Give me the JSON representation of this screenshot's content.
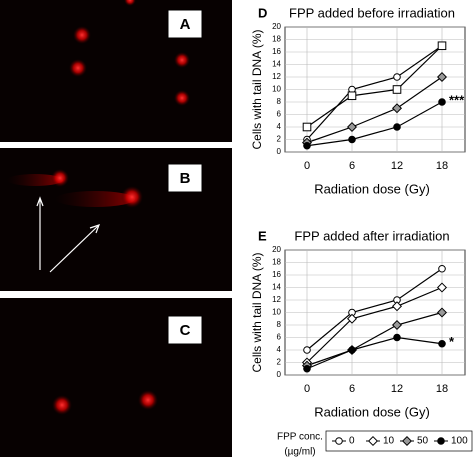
{
  "images": [
    {
      "label": "A"
    },
    {
      "label": "B"
    },
    {
      "label": "C"
    }
  ],
  "chart_data": [
    {
      "type": "line",
      "panel": "D",
      "title": "FPP added before irradiation",
      "x_label": "Radiation dose (Gy)",
      "y_label": "Cells with tail DNA (%)",
      "categories": [
        "0",
        "6",
        "12",
        "18"
      ],
      "ylim": [
        0,
        20
      ],
      "yticks": [
        0,
        2,
        4,
        6,
        8,
        10,
        12,
        14,
        16,
        18,
        20
      ],
      "series": [
        {
          "color": "#000000",
          "fill": "#ffffff",
          "marker": "circle",
          "values": [
            2,
            10,
            12,
            17
          ]
        },
        {
          "color": "#000000",
          "fill": "#ffffff",
          "marker": "square",
          "values": [
            4,
            9,
            10,
            17
          ]
        },
        {
          "color": "#000000",
          "fill": "#999999",
          "marker": "diamond",
          "values": [
            1.5,
            4,
            7,
            12
          ]
        },
        {
          "color": "#000000",
          "fill": "#000000",
          "marker": "circle",
          "values": [
            1,
            2,
            4,
            8
          ]
        }
      ],
      "annotations": [
        {
          "text": "***",
          "series": 3,
          "index": 3
        }
      ]
    },
    {
      "type": "line",
      "panel": "E",
      "title": "FPP added after irradiation",
      "x_label": "Radiation dose (Gy)",
      "y_label": "Cells with tail DNA (%)",
      "categories": [
        "0",
        "6",
        "12",
        "18"
      ],
      "ylim": [
        0,
        20
      ],
      "yticks": [
        0,
        2,
        4,
        6,
        8,
        10,
        12,
        14,
        16,
        18,
        20
      ],
      "legend_title": [
        "FPP conc.",
        "(µg/ml)"
      ],
      "series": [
        {
          "name": "0",
          "color": "#000000",
          "fill": "#ffffff",
          "marker": "circle",
          "values": [
            4,
            10,
            12,
            17
          ]
        },
        {
          "name": "10",
          "color": "#000000",
          "fill": "#ffffff",
          "marker": "diamond",
          "values": [
            2,
            9,
            11,
            14
          ]
        },
        {
          "name": "50",
          "color": "#000000",
          "fill": "#999999",
          "marker": "diamond",
          "values": [
            1.5,
            4,
            8,
            10
          ]
        },
        {
          "name": "100",
          "color": "#000000",
          "fill": "#000000",
          "marker": "circle",
          "values": [
            1,
            4,
            6,
            5
          ]
        }
      ],
      "annotations": [
        {
          "text": "*",
          "series": 3,
          "index": 3
        }
      ]
    }
  ]
}
